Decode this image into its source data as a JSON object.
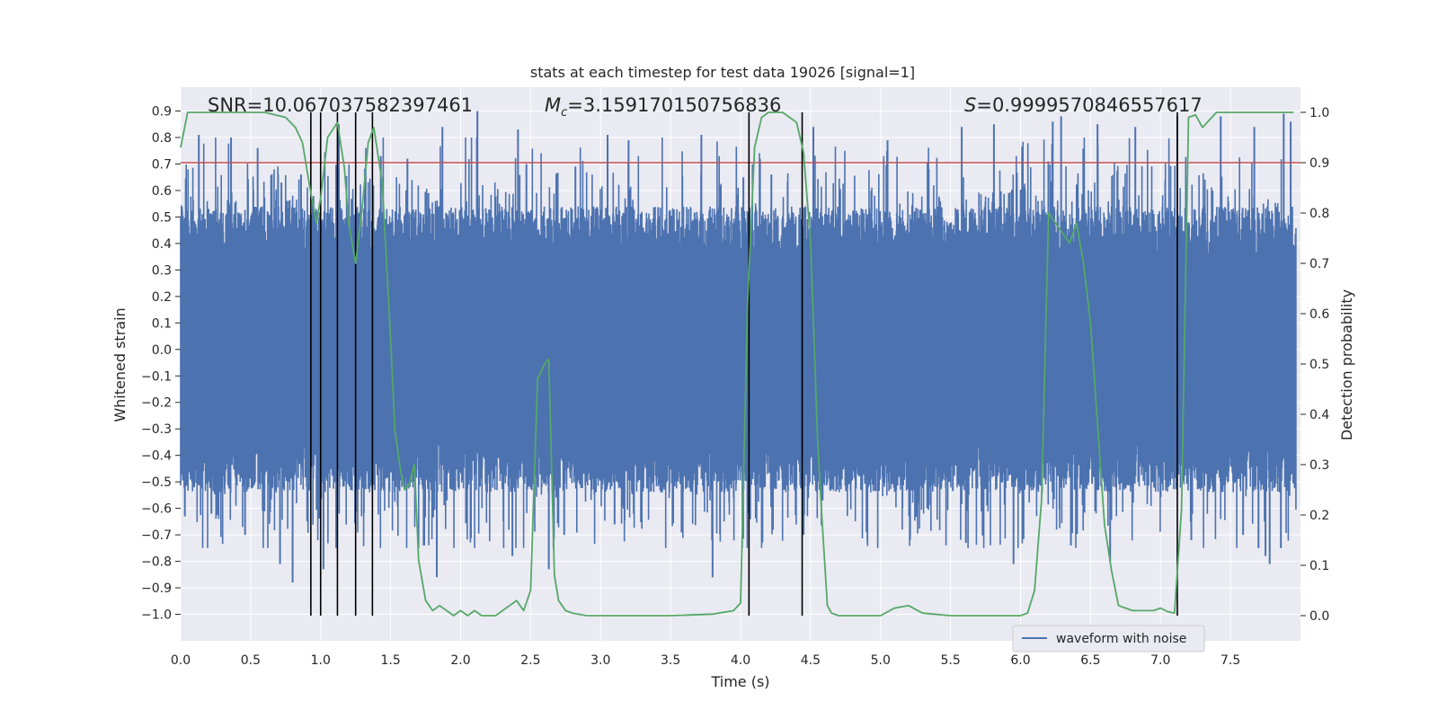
{
  "chart_data": {
    "type": "line",
    "title": "stats at each timestep for test data 19026 [signal=1]",
    "xlabel": "Time (s)",
    "ylabel": "Whitened strain",
    "y2label": "Detection probability",
    "xlim": [
      0.0,
      8.0
    ],
    "ylim": [
      -1.1,
      0.99
    ],
    "y2lim": [
      -0.05,
      1.05
    ],
    "xticks": [
      "0.0",
      "0.5",
      "1.0",
      "1.5",
      "2.0",
      "2.5",
      "3.0",
      "3.5",
      "4.0",
      "4.5",
      "5.0",
      "5.5",
      "6.0",
      "6.5",
      "7.0",
      "7.5"
    ],
    "yticks": [
      "0.9",
      "0.8",
      "0.7",
      "0.6",
      "0.5",
      "0.4",
      "0.3",
      "0.2",
      "0.1",
      "0.0",
      "−0.1",
      "−0.2",
      "−0.3",
      "−0.4",
      "−0.5",
      "−0.6",
      "−0.7",
      "−0.8",
      "−0.9",
      "−1.0"
    ],
    "y2ticks": [
      "1.0",
      "0.9",
      "0.8",
      "0.7",
      "0.6",
      "0.5",
      "0.4",
      "0.3",
      "0.2",
      "0.1",
      "0.0"
    ],
    "annotations": {
      "snr": "SNR=10.067037582397461",
      "mc_symbol": "M",
      "mc_subscript": "c",
      "mc_value": "=3.159170150756836",
      "s_symbol": "S",
      "s_value": "=0.9999570846557617"
    },
    "threshold": {
      "y2": 0.9,
      "color": "#c44e52"
    },
    "vlines_x": [
      0.93,
      1.0,
      1.12,
      1.25,
      1.37,
      4.06,
      4.44,
      7.12
    ],
    "waveform": {
      "name": "waveform with noise",
      "color": "#4c72b0",
      "core_amplitude": 0.4,
      "peaks": [
        [
          0.13,
          0.81
        ],
        [
          0.36,
          0.8
        ],
        [
          0.55,
          0.76
        ],
        [
          0.72,
          0.63
        ],
        [
          0.86,
          0.66
        ],
        [
          1.13,
          0.85
        ],
        [
          1.43,
          0.73
        ],
        [
          1.62,
          0.72
        ],
        [
          1.77,
          0.59
        ],
        [
          1.87,
          0.84
        ],
        [
          2.12,
          0.9
        ],
        [
          2.41,
          0.83
        ],
        [
          2.47,
          0.7
        ],
        [
          2.82,
          0.69
        ],
        [
          3.05,
          0.81
        ],
        [
          3.2,
          0.79
        ],
        [
          3.72,
          0.81
        ],
        [
          4.02,
          0.65
        ],
        [
          4.22,
          0.66
        ],
        [
          4.52,
          0.84
        ],
        [
          5.05,
          0.79
        ],
        [
          5.58,
          0.84
        ],
        [
          5.81,
          0.85
        ],
        [
          6.23,
          0.86
        ],
        [
          6.29,
          0.88
        ],
        [
          6.55,
          0.85
        ],
        [
          6.82,
          0.84
        ],
        [
          7.12,
          0.88
        ],
        [
          7.43,
          0.88
        ],
        [
          7.67,
          0.84
        ],
        [
          7.88,
          0.89
        ],
        [
          7.93,
          0.86
        ]
      ],
      "troughs": [
        [
          0.03,
          -0.63
        ],
        [
          0.22,
          -0.62
        ],
        [
          0.46,
          -0.7
        ],
        [
          0.71,
          -0.81
        ],
        [
          0.8,
          -0.88
        ],
        [
          1.02,
          -0.83
        ],
        [
          1.55,
          -0.59
        ],
        [
          1.74,
          -0.74
        ],
        [
          1.83,
          -0.86
        ],
        [
          2.37,
          -0.78
        ],
        [
          2.63,
          -0.83
        ],
        [
          2.74,
          -0.7
        ],
        [
          3.1,
          -0.66
        ],
        [
          3.8,
          -0.86
        ],
        [
          4.45,
          -0.7
        ],
        [
          4.9,
          -0.69
        ],
        [
          5.61,
          -0.73
        ],
        [
          5.95,
          -0.81
        ],
        [
          6.36,
          -0.74
        ],
        [
          6.64,
          -0.8
        ],
        [
          7.22,
          -0.72
        ],
        [
          7.59,
          -0.7
        ],
        [
          7.7,
          -0.75
        ],
        [
          7.75,
          -0.78
        ],
        [
          7.78,
          -0.81
        ],
        [
          7.86,
          -0.75
        ]
      ]
    },
    "detection_probability": {
      "color": "#55a868",
      "x": [
        0.0,
        0.05,
        0.2,
        0.4,
        0.6,
        0.75,
        0.82,
        0.87,
        0.93,
        0.97,
        1.0,
        1.05,
        1.12,
        1.17,
        1.2,
        1.25,
        1.3,
        1.34,
        1.38,
        1.44,
        1.5,
        1.53,
        1.57,
        1.6,
        1.63,
        1.67,
        1.7,
        1.75,
        1.8,
        1.85,
        1.9,
        1.95,
        2.0,
        2.05,
        2.1,
        2.15,
        2.2,
        2.25,
        2.3,
        2.35,
        2.4,
        2.45,
        2.5,
        2.55,
        2.6,
        2.63,
        2.67,
        2.7,
        2.75,
        2.8,
        2.9,
        3.0,
        3.5,
        3.8,
        3.95,
        4.0,
        4.05,
        4.1,
        4.15,
        4.2,
        4.3,
        4.4,
        4.45,
        4.5,
        4.55,
        4.58,
        4.62,
        4.65,
        4.7,
        4.8,
        5.0,
        5.1,
        5.2,
        5.3,
        5.5,
        5.8,
        6.0,
        6.05,
        6.1,
        6.15,
        6.2,
        6.3,
        6.35,
        6.4,
        6.45,
        6.5,
        6.6,
        6.65,
        6.7,
        6.8,
        6.95,
        7.0,
        7.05,
        7.1,
        7.15,
        7.2,
        7.25,
        7.3,
        7.4,
        7.5,
        7.7,
        7.95
      ],
      "y": [
        0.93,
        1.0,
        1.0,
        1.0,
        1.0,
        0.99,
        0.97,
        0.94,
        0.84,
        0.78,
        0.83,
        0.95,
        0.98,
        0.89,
        0.78,
        0.7,
        0.82,
        0.94,
        0.97,
        0.86,
        0.55,
        0.37,
        0.29,
        0.25,
        0.26,
        0.3,
        0.11,
        0.03,
        0.01,
        0.02,
        0.01,
        0.0,
        0.01,
        0.0,
        0.01,
        0.0,
        0.0,
        0.0,
        0.01,
        0.02,
        0.03,
        0.01,
        0.05,
        0.47,
        0.5,
        0.51,
        0.08,
        0.03,
        0.01,
        0.005,
        0.0,
        0.0,
        0.0,
        0.003,
        0.01,
        0.025,
        0.62,
        0.93,
        0.99,
        1.0,
        1.0,
        0.98,
        0.92,
        0.74,
        0.35,
        0.2,
        0.02,
        0.005,
        0.0,
        0.0,
        0.0,
        0.015,
        0.02,
        0.005,
        0.0,
        0.0,
        0.0,
        0.005,
        0.05,
        0.23,
        0.8,
        0.76,
        0.74,
        0.78,
        0.7,
        0.58,
        0.18,
        0.09,
        0.02,
        0.01,
        0.01,
        0.015,
        0.008,
        0.005,
        0.21,
        0.99,
        0.995,
        0.97,
        1.0,
        1.0,
        1.0,
        1.0
      ]
    }
  }
}
